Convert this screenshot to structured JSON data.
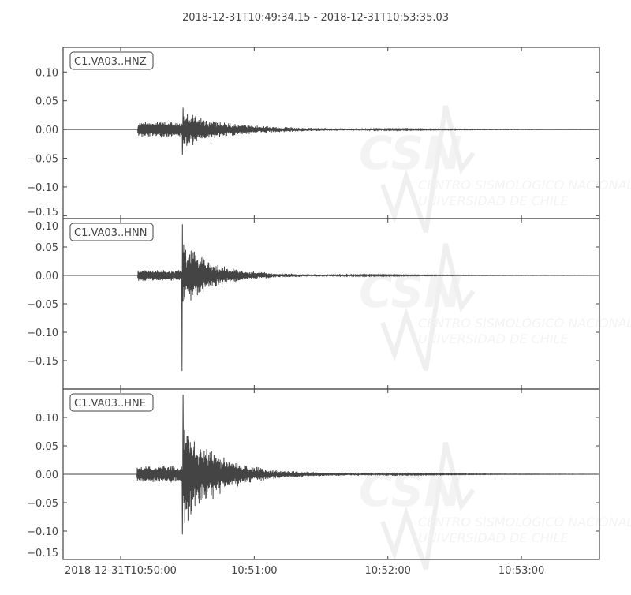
{
  "chart_data": {
    "type": "line",
    "title": "2018-12-31T10:49:34.15  -  2018-12-31T10:53:35.03",
    "start_time": "2018-12-31T10:49:34.15",
    "end_time": "2018-12-31T10:53:35.03",
    "x_ticks": [
      "2018-12-31T10:50:00",
      "10:51:00",
      "10:52:00",
      "10:53:00"
    ],
    "x_tick_seconds_from_start": [
      25.85,
      85.85,
      145.85,
      205.85
    ],
    "line_color": "#444444",
    "watermark": {
      "logo": "CSN",
      "line1": "CENTRO SISMOLÓGICO NACIONAL",
      "line2": "UNIVERSIDAD DE CHILE"
    },
    "panels": [
      {
        "label": "C1.VA03..HNZ",
        "ylim": [
          -0.155,
          0.143
        ],
        "y_ticks": [
          "0.10",
          "0.05",
          "0.00",
          "−0.05",
          "−0.10",
          "−0.15"
        ],
        "y_tick_values": [
          0.1,
          0.05,
          0.0,
          -0.05,
          -0.1,
          -0.15
        ],
        "p_onset_s": 33.5,
        "s_onset_s": 53.5,
        "p_amplitude": 0.011,
        "max": 0.038,
        "min": -0.044,
        "decay_s": 14
      },
      {
        "label": "C1.VA03..HNN",
        "ylim": [
          -0.2,
          0.1
        ],
        "y_ticks": [
          "0.10",
          "0.05",
          "0.00",
          "−0.05",
          "−0.10",
          "−0.15"
        ],
        "y_tick_values": [
          0.1,
          0.05,
          0.0,
          -0.05,
          -0.1,
          -0.15
        ],
        "p_onset_s": 33.5,
        "s_onset_s": 53.3,
        "p_amplitude": 0.008,
        "max": 0.09,
        "min": -0.168,
        "decay_s": 12
      },
      {
        "label": "C1.VA03..HNE",
        "ylim": [
          -0.15,
          0.15
        ],
        "y_ticks": [
          "0.10",
          "0.05",
          "0.00",
          "−0.05",
          "−0.10",
          "−0.15"
        ],
        "y_tick_values": [
          0.1,
          0.05,
          0.0,
          -0.05,
          -0.1,
          -0.15
        ],
        "p_onset_s": 33.2,
        "s_onset_s": 53.5,
        "p_amplitude": 0.012,
        "max": 0.14,
        "min": -0.106,
        "decay_s": 14
      }
    ]
  }
}
